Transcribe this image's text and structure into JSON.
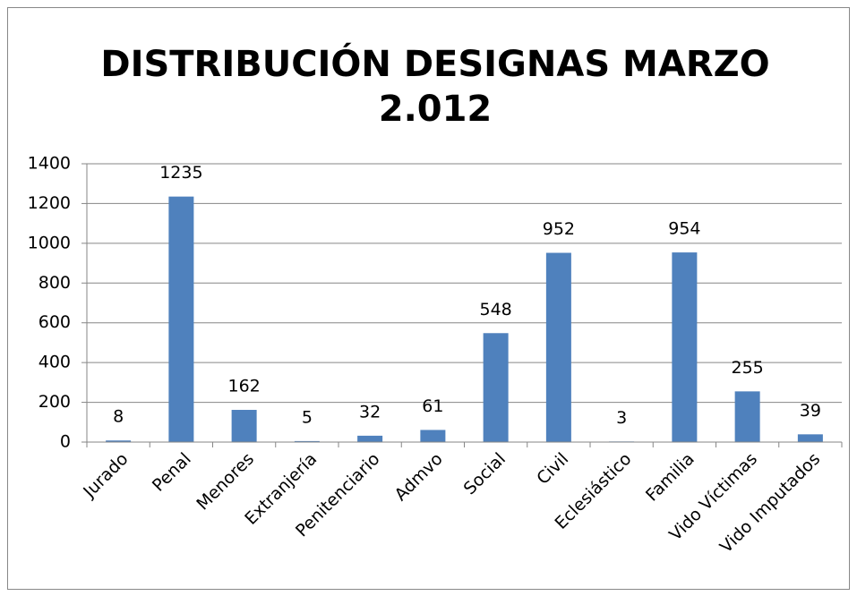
{
  "chart_data": {
    "type": "bar",
    "title": [
      "DISTRIBUCIÓN DESIGNAS MARZO",
      "2.012"
    ],
    "categories": [
      "Jurado",
      "Penal",
      "Menores",
      "Extranjería",
      "Penitenciario",
      "Admvo",
      "Social",
      "Civil",
      "Eclesiástico",
      "Familia",
      "Vido Víctimas",
      "Vido Imputados"
    ],
    "values": [
      8,
      1235,
      162,
      5,
      32,
      61,
      548,
      952,
      3,
      954,
      255,
      39
    ],
    "color": "#4f81bd",
    "ylim": [
      0,
      1400
    ],
    "yticks": [
      0,
      200,
      400,
      600,
      800,
      1000,
      1200,
      1400
    ],
    "grid": true
  }
}
